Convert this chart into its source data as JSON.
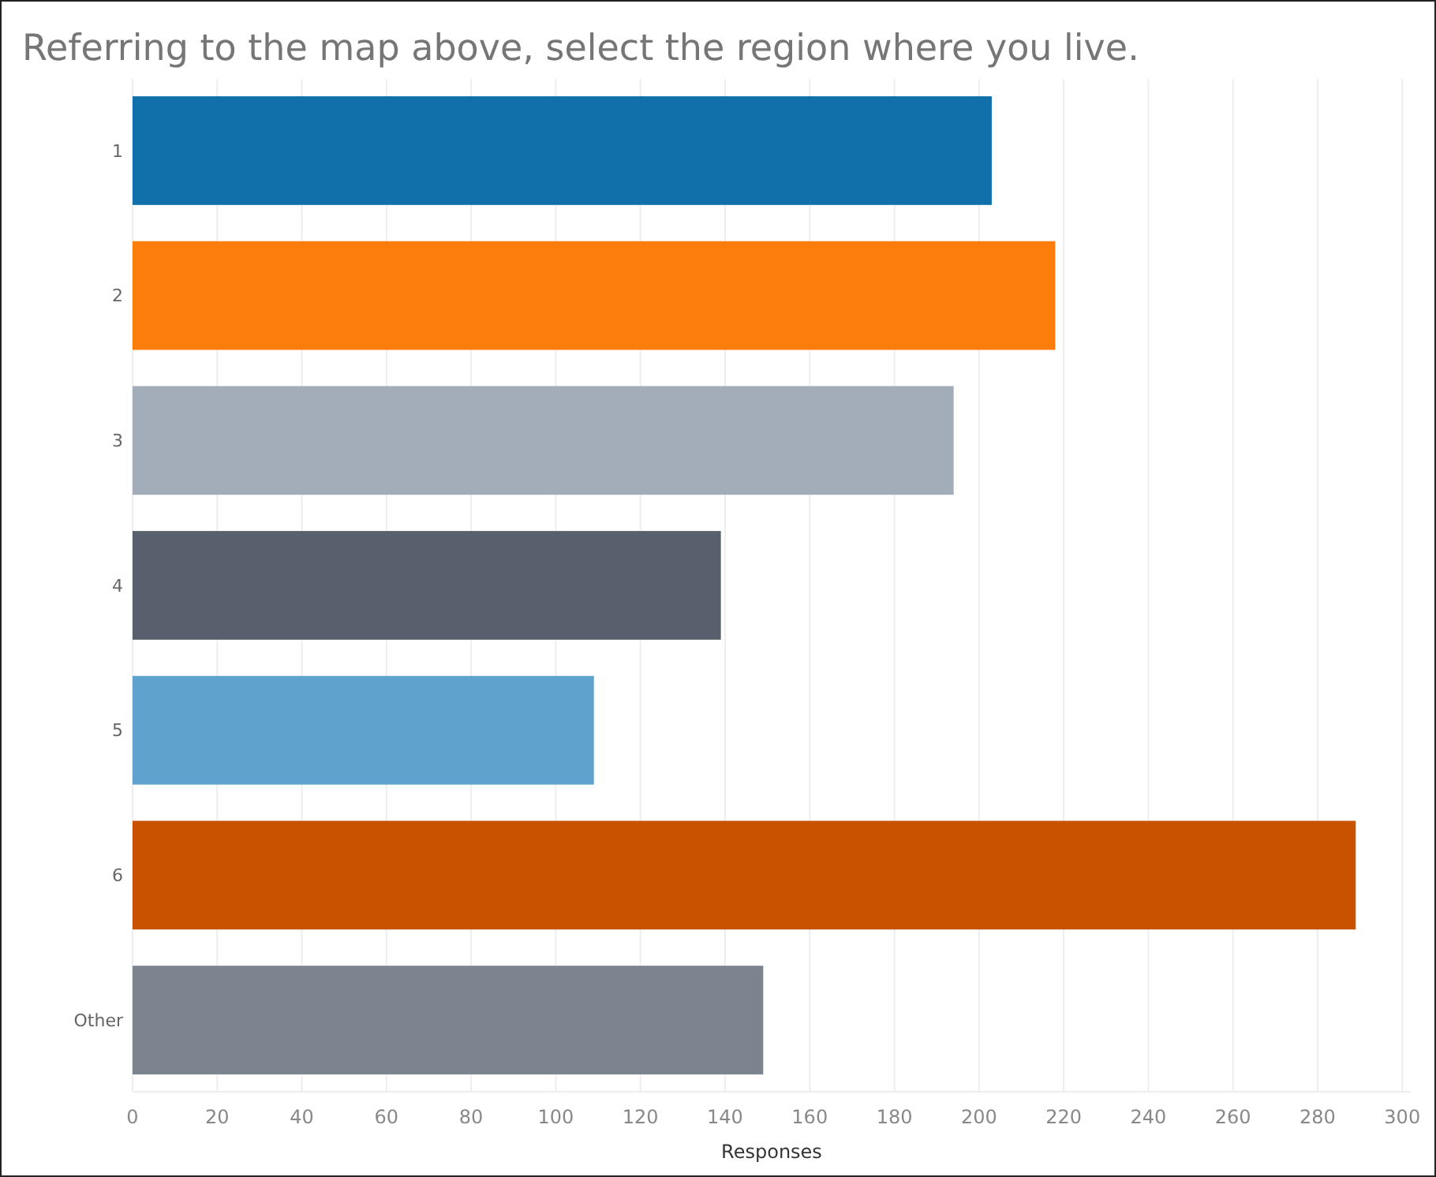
{
  "chart_data": {
    "type": "bar",
    "orientation": "horizontal",
    "title": "Referring to the map above, select the region where you live.",
    "xlabel": "Responses",
    "categories": [
      "1",
      "2",
      "3",
      "4",
      "5",
      "6",
      "Other"
    ],
    "values": [
      203,
      218,
      194,
      139,
      109,
      289,
      149
    ],
    "colors": [
      "#1170aa",
      "#fc7d0b",
      "#a3acb9",
      "#57606c",
      "#5fa2ce",
      "#c85200",
      "#7b848f"
    ],
    "xlim": [
      0,
      302
    ],
    "xticks": [
      0,
      20,
      40,
      60,
      80,
      100,
      120,
      140,
      160,
      180,
      200,
      220,
      240,
      260,
      280,
      300
    ],
    "grid": "x"
  }
}
